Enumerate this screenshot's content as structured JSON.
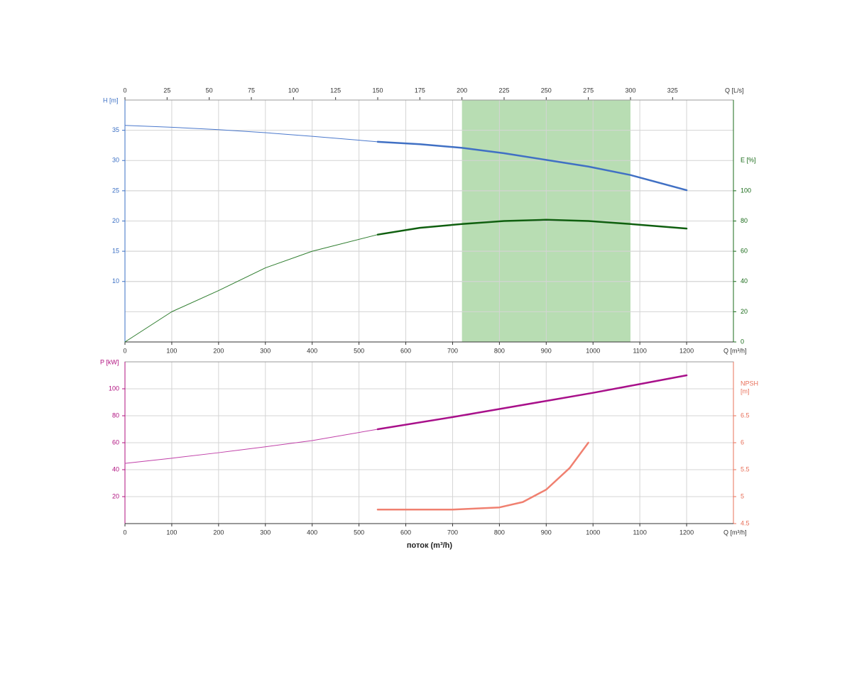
{
  "chart_data": [
    {
      "type": "line",
      "xlabel": "Q [m³/h]",
      "x2label": "Q [L/s]",
      "ylabel": "H [m]",
      "y2label": [
        "E [%]"
      ],
      "xlim": [
        0,
        1300
      ],
      "xticks": [
        0,
        100,
        200,
        300,
        400,
        500,
        600,
        700,
        800,
        900,
        1000,
        1100,
        1200
      ],
      "x2lim": [
        0,
        361.1
      ],
      "x2ticks": [
        0,
        25,
        50,
        75,
        100,
        125,
        150,
        175,
        200,
        225,
        250,
        275,
        300,
        325
      ],
      "ylim": [
        0,
        40
      ],
      "yticks": [
        10,
        15,
        20,
        25,
        30,
        35
      ],
      "ycolor": "#3a6fc4",
      "y2lim": [
        0,
        160
      ],
      "y2ticks": [
        0,
        20,
        40,
        60,
        80,
        100
      ],
      "y2color": "#1a6b1a",
      "grid": true,
      "band": {
        "x": [
          720,
          1080
        ],
        "color": "#b8ddb3"
      },
      "series": [
        {
          "color": "#4a78cc",
          "width": 1,
          "x": [
            0,
            100,
            200,
            300,
            400,
            540
          ],
          "values": [
            35.8,
            35.5,
            35.1,
            34.6,
            34.0,
            33.1
          ]
        },
        {
          "color": "#4070c4",
          "width": 2.5,
          "x": [
            540,
            630,
            720,
            810,
            900,
            990,
            1080,
            1200
          ],
          "values": [
            33.1,
            32.7,
            32.1,
            31.2,
            30.1,
            29.0,
            27.6,
            25.1
          ]
        },
        {
          "color": "#2e7d2e",
          "width": 1,
          "axis": "y2",
          "x": [
            0,
            100,
            200,
            300,
            400,
            540
          ],
          "values": [
            0,
            20,
            34,
            49,
            60,
            71
          ]
        },
        {
          "color": "#0f5f0f",
          "width": 2.5,
          "axis": "y2",
          "x": [
            540,
            630,
            720,
            810,
            900,
            990,
            1080,
            1200
          ],
          "values": [
            71,
            75.5,
            78,
            80,
            80.8,
            80,
            78,
            75
          ]
        }
      ]
    },
    {
      "type": "line",
      "xlabel": "Q [m³/h]",
      "ylabel": "P [kW]",
      "y2label": [
        "NPSH",
        "[m]"
      ],
      "xtitle": "поток (m³/h)",
      "xlim": [
        0,
        1300
      ],
      "xticks": [
        0,
        100,
        200,
        300,
        400,
        500,
        600,
        700,
        800,
        900,
        1000,
        1100,
        1200
      ],
      "ylim": [
        0,
        120
      ],
      "yticks": [
        20,
        40,
        60,
        80,
        100
      ],
      "ycolor": "#b0107f",
      "y2lim": [
        4.5,
        7.5
      ],
      "y2ticks": [
        4.5,
        5,
        5.5,
        6,
        6.5
      ],
      "y2color": "#e8705a",
      "grid": true,
      "series": [
        {
          "color": "#c040a8",
          "width": 1,
          "x": [
            0,
            100,
            200,
            300,
            400,
            540
          ],
          "values": [
            44.7,
            48.5,
            52.6,
            57,
            61.6,
            70
          ]
        },
        {
          "color": "#a8108a",
          "width": 2.5,
          "x": [
            540,
            700,
            800,
            900,
            1000,
            1100,
            1200
          ],
          "values": [
            70,
            79,
            85,
            91,
            97,
            103.5,
            110
          ]
        },
        {
          "color": "#f08070",
          "width": 2.5,
          "axis": "y2",
          "x": [
            540,
            600,
            700,
            800,
            850,
            900,
            950,
            990
          ],
          "values": [
            4.76,
            4.76,
            4.76,
            4.8,
            4.9,
            5.13,
            5.53,
            6.0
          ]
        }
      ]
    }
  ]
}
